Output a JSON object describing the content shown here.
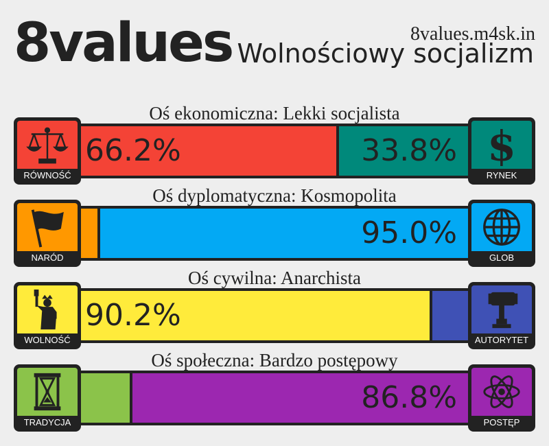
{
  "header": {
    "brand": "8values",
    "site": "8values.m4sk.in",
    "ideology": "Wolnościowy socjalizm"
  },
  "axes": [
    {
      "title": "Oś ekonomiczna: Lekki socjalista",
      "left_label": "RÓWNOŚĆ",
      "right_label": "RYNEK",
      "left_icon": "scales-icon",
      "right_icon": "dollar-icon",
      "left_value": 66.2,
      "right_value": 33.8,
      "left_text": "66.2%",
      "right_text": "33.8%",
      "left_color": "#f44336",
      "right_color": "#00897b"
    },
    {
      "title": "Oś dyplomatyczna: Kosmopolita",
      "left_label": "NARÓD",
      "right_label": "GLOB",
      "left_icon": "flag-icon",
      "right_icon": "globe-icon",
      "left_value": 5.0,
      "right_value": 95.0,
      "left_text": "",
      "right_text": "95.0%",
      "left_color": "#ff9800",
      "right_color": "#03a9f4"
    },
    {
      "title": "Oś cywilna: Anarchista",
      "left_label": "WOLNOŚĆ",
      "right_label": "AUTORYTET",
      "left_icon": "statue-of-liberty-icon",
      "right_icon": "gavel-icon",
      "left_value": 90.2,
      "right_value": 9.8,
      "left_text": "90.2%",
      "right_text": "",
      "left_color": "#ffeb3b",
      "right_color": "#3f51b5"
    },
    {
      "title": "Oś społeczna: Bardzo postępowy",
      "left_label": "TRADYCJA",
      "right_label": "POSTĘP",
      "left_icon": "hourglass-icon",
      "right_icon": "atom-icon",
      "left_value": 13.2,
      "right_value": 86.8,
      "left_text": "",
      "right_text": "86.8%",
      "left_color": "#8bc34a",
      "right_color": "#9c27b0"
    }
  ]
}
